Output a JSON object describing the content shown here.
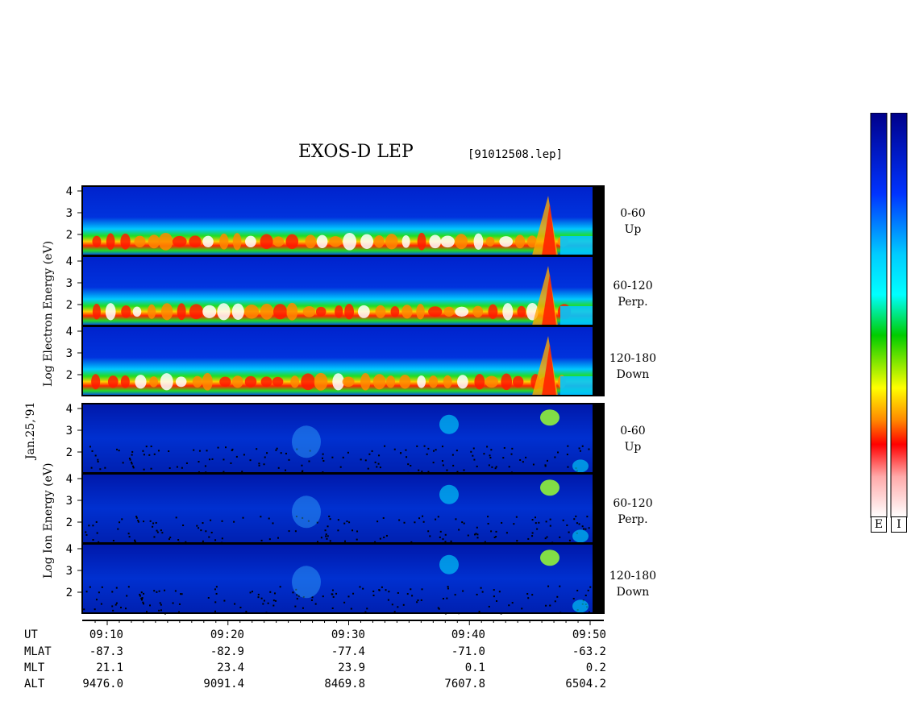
{
  "chart_data": {
    "type": "heatmap",
    "title": "EXOS-D LEP",
    "filename": "[91012508.lep]",
    "date_label": "Jan.25,'91",
    "y_ticks": [
      "4",
      "3",
      "2"
    ],
    "electron": {
      "ylabel": "Log Electron Energy (eV)",
      "panels": [
        {
          "label1": "0-60",
          "label2": "Up"
        },
        {
          "label1": "60-120",
          "label2": "Perp."
        },
        {
          "label1": "120-180",
          "label2": "Down"
        }
      ]
    },
    "ion": {
      "ylabel": "Log Ion Energy (eV)",
      "panels": [
        {
          "label1": "0-60",
          "label2": "Up"
        },
        {
          "label1": "60-120",
          "label2": "Perp."
        },
        {
          "label1": "120-180",
          "label2": "Down"
        }
      ]
    },
    "x_axis": {
      "rows": [
        {
          "name": "UT",
          "values": [
            "09:10",
            "09:20",
            "09:30",
            "09:40",
            "09:50"
          ]
        },
        {
          "name": "MLAT",
          "values": [
            "-87.3",
            "-82.9",
            "-77.4",
            "-71.0",
            "-63.2"
          ]
        },
        {
          "name": "MLT",
          "values": [
            "21.1",
            "23.4",
            "23.9",
            "0.1",
            "0.2"
          ]
        },
        {
          "name": "ALT",
          "values": [
            "9476.0",
            "9091.4",
            "8469.8",
            "7607.8",
            "6504.2"
          ]
        }
      ]
    },
    "colorbars": [
      {
        "label": "E"
      },
      {
        "label": "I"
      }
    ]
  }
}
